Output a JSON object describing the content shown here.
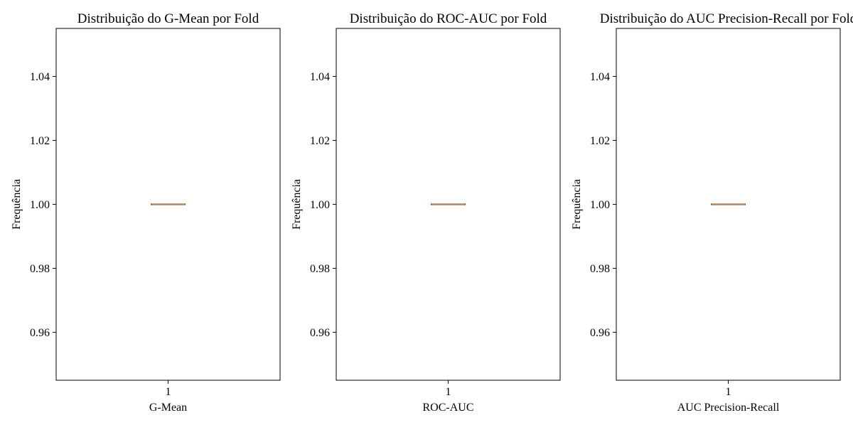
{
  "figure": {
    "colors": {
      "axes": "#000000",
      "box": "#000000",
      "median": "#e08030",
      "background": "#ffffff"
    }
  },
  "chart_data": [
    {
      "type": "box",
      "title": "Distribuição do G-Mean por Fold",
      "xlabel": "G-Mean",
      "ylabel": "Frequência",
      "categories": [
        "1"
      ],
      "ylim": [
        0.945,
        1.055
      ],
      "yticks": [
        0.96,
        0.98,
        1.0,
        1.02,
        1.04
      ],
      "ytick_labels": [
        "0.96",
        "0.98",
        "1.00",
        "1.02",
        "1.04"
      ],
      "boxes": [
        {
          "min": 1.0,
          "q1": 1.0,
          "median": 1.0,
          "q3": 1.0,
          "max": 1.0
        }
      ],
      "grid": false
    },
    {
      "type": "box",
      "title": "Distribuição do ROC-AUC por Fold",
      "xlabel": "ROC-AUC",
      "ylabel": "Frequência",
      "categories": [
        "1"
      ],
      "ylim": [
        0.945,
        1.055
      ],
      "yticks": [
        0.96,
        0.98,
        1.0,
        1.02,
        1.04
      ],
      "ytick_labels": [
        "0.96",
        "0.98",
        "1.00",
        "1.02",
        "1.04"
      ],
      "boxes": [
        {
          "min": 1.0,
          "q1": 1.0,
          "median": 1.0,
          "q3": 1.0,
          "max": 1.0
        }
      ],
      "grid": false
    },
    {
      "type": "box",
      "title": "Distribuição do AUC Precision-Recall por Fold",
      "xlabel": "AUC Precision-Recall",
      "ylabel": "Frequência",
      "categories": [
        "1"
      ],
      "ylim": [
        0.945,
        1.055
      ],
      "yticks": [
        0.96,
        0.98,
        1.0,
        1.02,
        1.04
      ],
      "ytick_labels": [
        "0.96",
        "0.98",
        "1.00",
        "1.02",
        "1.04"
      ],
      "boxes": [
        {
          "min": 1.0,
          "q1": 1.0,
          "median": 1.0,
          "q3": 1.0,
          "max": 1.0
        }
      ],
      "grid": false
    }
  ]
}
